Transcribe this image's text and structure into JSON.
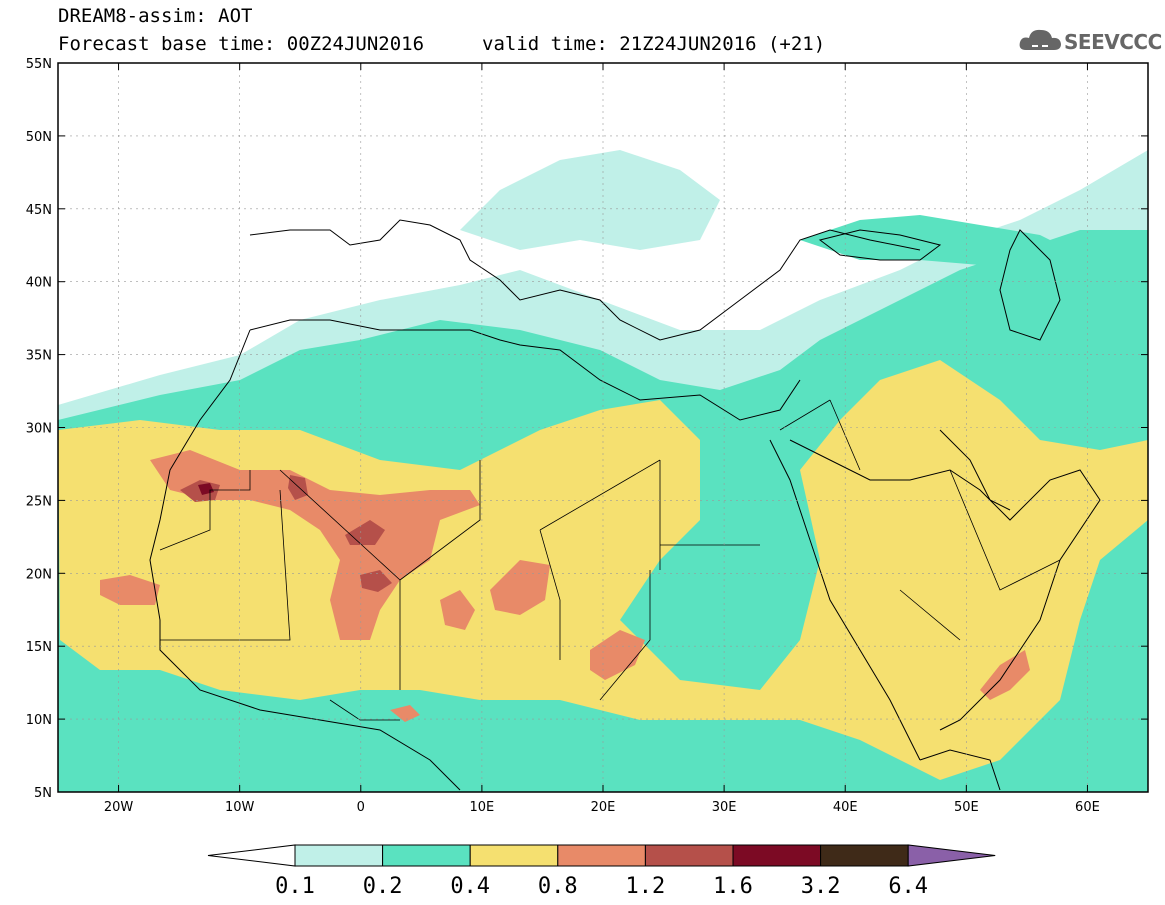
{
  "header": {
    "title": "DREAM8-assim: AOT",
    "base_time": "Forecast base time: 00Z24JUN2016",
    "valid_time": "valid time: 21Z24JUN2016 (+21)"
  },
  "logo": {
    "text": "SEEVCCC",
    "icon": "cloud-icon"
  },
  "map": {
    "lon_range": [
      -25,
      65
    ],
    "lat_range": [
      5,
      55
    ],
    "lat_labels": [
      "5N",
      "10N",
      "15N",
      "20N",
      "25N",
      "30N",
      "35N",
      "40N",
      "45N",
      "50N",
      "55N"
    ],
    "lon_labels": [
      "20W",
      "10W",
      "0",
      "10E",
      "20E",
      "30E",
      "40E",
      "50E",
      "60E"
    ]
  },
  "legend": {
    "colors": [
      "#ffffff",
      "#c0f0e8",
      "#5ae2c0",
      "#f5e070",
      "#e88a68",
      "#b5504a",
      "#7c0a24",
      "#3f2a18",
      "#8a60a8"
    ],
    "labels": [
      "0.1",
      "0.2",
      "0.4",
      "0.8",
      "1.2",
      "1.6",
      "3.2",
      "6.4"
    ]
  }
}
